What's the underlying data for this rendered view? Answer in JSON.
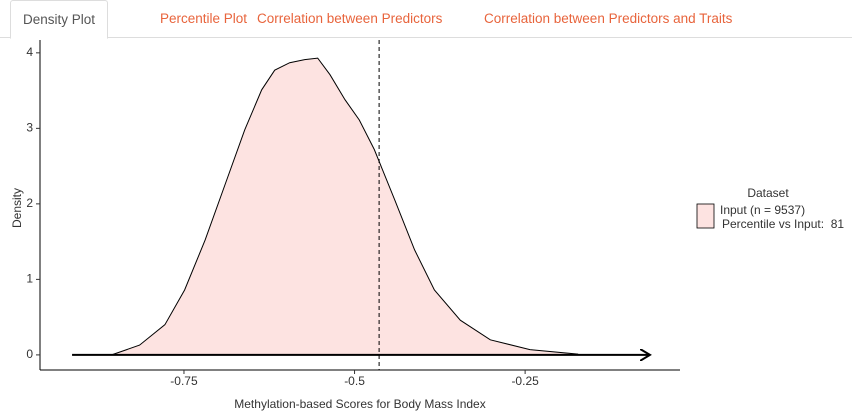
{
  "tabs": [
    {
      "label": "Density Plot",
      "active": true
    },
    {
      "label": "Percentile Plot",
      "active": false
    },
    {
      "label": "Correlation between Predictors",
      "active": false
    },
    {
      "label": "Correlation between Predictors and Traits",
      "active": false
    }
  ],
  "chart_data": {
    "type": "area",
    "x_label": "Methylation-based Scores for Body Mass Index",
    "y_label": "Density",
    "x": [
      -0.856,
      -0.815,
      -0.778,
      -0.749,
      -0.719,
      -0.69,
      -0.661,
      -0.636,
      -0.617,
      -0.595,
      -0.573,
      -0.554,
      -0.536,
      -0.514,
      -0.493,
      -0.471,
      -0.441,
      -0.412,
      -0.383,
      -0.345,
      -0.301,
      -0.243,
      -0.173
    ],
    "series": [
      {
        "name": "Input (n = 9537)",
        "color": "#fde3e1",
        "values": [
          0,
          0.13,
          0.4,
          0.86,
          1.52,
          2.25,
          2.98,
          3.51,
          3.77,
          3.87,
          3.91,
          3.93,
          3.71,
          3.38,
          3.11,
          2.72,
          2.05,
          1.39,
          0.86,
          0.46,
          0.2,
          0.07,
          0.01
        ]
      }
    ],
    "legend_title": "Dataset",
    "legend_note": "Percentile vs Input:  81",
    "vline": -0.464,
    "arrow": [
      -0.914,
      -0.067
    ],
    "xlim": [
      -0.961,
      -0.023
    ],
    "ylim": [
      -0.2,
      4.17
    ],
    "xticks": [
      -0.75,
      -0.5,
      -0.25
    ],
    "yticks": [
      0,
      1,
      2,
      3,
      4
    ]
  }
}
